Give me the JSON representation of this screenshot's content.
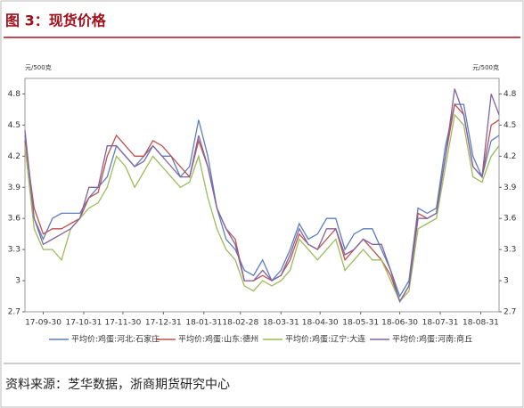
{
  "chart_data": {
    "type": "line",
    "title": "图 3：现货价格",
    "ylabel": "元/500克",
    "y2label": "元/500克",
    "source": "资料来源：芝华数据，浙商期货研究中心",
    "x": [
      "17-09-16",
      "17-09-23",
      "17-09-30",
      "17-10-07",
      "17-10-14",
      "17-10-21",
      "17-10-28",
      "17-11-04",
      "17-11-11",
      "17-11-18",
      "17-11-25",
      "17-12-02",
      "17-12-09",
      "17-12-16",
      "17-12-23",
      "17-12-30",
      "18-01-06",
      "18-01-13",
      "18-01-20",
      "18-01-27",
      "18-02-03",
      "18-02-10",
      "18-02-17",
      "18-02-24",
      "18-03-03",
      "18-03-10",
      "18-03-17",
      "18-03-24",
      "18-03-31",
      "18-04-07",
      "18-04-14",
      "18-04-21",
      "18-04-28",
      "18-05-05",
      "18-05-12",
      "18-05-19",
      "18-05-26",
      "18-06-02",
      "18-06-09",
      "18-06-16",
      "18-06-23",
      "18-06-30",
      "18-07-07",
      "18-07-14",
      "18-07-21",
      "18-07-28",
      "18-08-04",
      "18-08-11",
      "18-08-18",
      "18-08-25",
      "18-09-01",
      "18-09-08",
      "18-09-14"
    ],
    "series": [
      {
        "name": "平均价:鸡蛋:河北:石家庄",
        "color": "#5b7fc1",
        "values": [
          4.4,
          3.6,
          3.4,
          3.6,
          3.65,
          3.65,
          3.65,
          3.8,
          3.9,
          4.0,
          4.3,
          4.2,
          4.1,
          4.2,
          4.3,
          4.2,
          4.2,
          4.0,
          4.1,
          4.55,
          4.2,
          3.7,
          3.4,
          3.3,
          3.1,
          3.05,
          3.2,
          3.0,
          3.1,
          3.3,
          3.55,
          3.4,
          3.45,
          3.6,
          3.6,
          3.3,
          3.45,
          3.5,
          3.5,
          3.3,
          3.1,
          2.85,
          3.0,
          3.7,
          3.65,
          3.7,
          4.3,
          4.7,
          4.7,
          4.2,
          4.0,
          4.35,
          4.4
        ]
      },
      {
        "name": "平均价:鸡蛋:山东:德州",
        "color": "#c0504d",
        "values": [
          4.35,
          3.7,
          3.45,
          3.5,
          3.5,
          3.55,
          3.6,
          3.8,
          3.85,
          4.2,
          4.4,
          4.3,
          4.2,
          4.2,
          4.35,
          4.3,
          4.2,
          4.1,
          4.0,
          4.35,
          4.1,
          3.7,
          3.5,
          3.4,
          3.0,
          3.0,
          3.05,
          3.0,
          3.05,
          3.2,
          3.45,
          3.35,
          3.3,
          3.4,
          3.5,
          3.2,
          3.3,
          3.4,
          3.3,
          3.2,
          3.05,
          2.8,
          2.95,
          3.65,
          3.6,
          3.65,
          4.2,
          4.7,
          4.6,
          4.1,
          4.0,
          4.5,
          4.55
        ]
      },
      {
        "name": "平均价:鸡蛋:辽宁:大连",
        "color": "#9bbb59",
        "values": [
          4.3,
          3.5,
          3.3,
          3.3,
          3.2,
          3.5,
          3.6,
          3.7,
          3.75,
          3.9,
          4.2,
          4.1,
          3.9,
          4.05,
          4.2,
          4.1,
          4.0,
          3.9,
          3.95,
          4.2,
          3.8,
          3.5,
          3.3,
          3.2,
          2.95,
          2.9,
          3.0,
          2.95,
          3.0,
          3.1,
          3.4,
          3.3,
          3.2,
          3.3,
          3.4,
          3.1,
          3.2,
          3.3,
          3.2,
          3.2,
          3.0,
          2.8,
          2.9,
          3.5,
          3.55,
          3.6,
          4.1,
          4.6,
          4.5,
          4.0,
          3.95,
          4.2,
          4.3
        ]
      },
      {
        "name": "平均价:鸡蛋:河南:商丘",
        "color": "#8064a2",
        "values": [
          4.45,
          3.6,
          3.35,
          3.4,
          3.45,
          3.5,
          3.6,
          3.9,
          3.9,
          4.3,
          4.3,
          4.2,
          4.1,
          4.15,
          4.3,
          4.2,
          4.1,
          4.0,
          4.0,
          4.4,
          4.1,
          3.7,
          3.5,
          3.35,
          3.0,
          3.0,
          3.1,
          3.0,
          3.05,
          3.25,
          3.5,
          3.35,
          3.3,
          3.5,
          3.5,
          3.25,
          3.3,
          3.4,
          3.35,
          3.35,
          3.1,
          2.8,
          2.95,
          3.6,
          3.6,
          3.65,
          4.2,
          4.85,
          4.6,
          4.1,
          4.0,
          4.8,
          4.6
        ]
      }
    ],
    "xlim": [
      "17-09-16",
      "18-09-14"
    ],
    "xticks": [
      "17-09-30",
      "17-10-31",
      "17-11-30",
      "17-12-31",
      "18-01-31",
      "18-02-28",
      "18-03-31",
      "18-04-30",
      "18-05-31",
      "18-06-30",
      "18-07-31",
      "18-08-31"
    ],
    "ylim": [
      2.7,
      4.95
    ],
    "yticks": [
      2.7,
      3.0,
      3.3,
      3.6,
      3.9,
      4.2,
      4.5,
      4.8
    ],
    "y2lim": [
      2.7,
      4.95
    ],
    "y2ticks": [
      2.7,
      3.0,
      3.3,
      3.6,
      3.9,
      4.2,
      4.5,
      4.8
    ],
    "legend": "bottom"
  }
}
